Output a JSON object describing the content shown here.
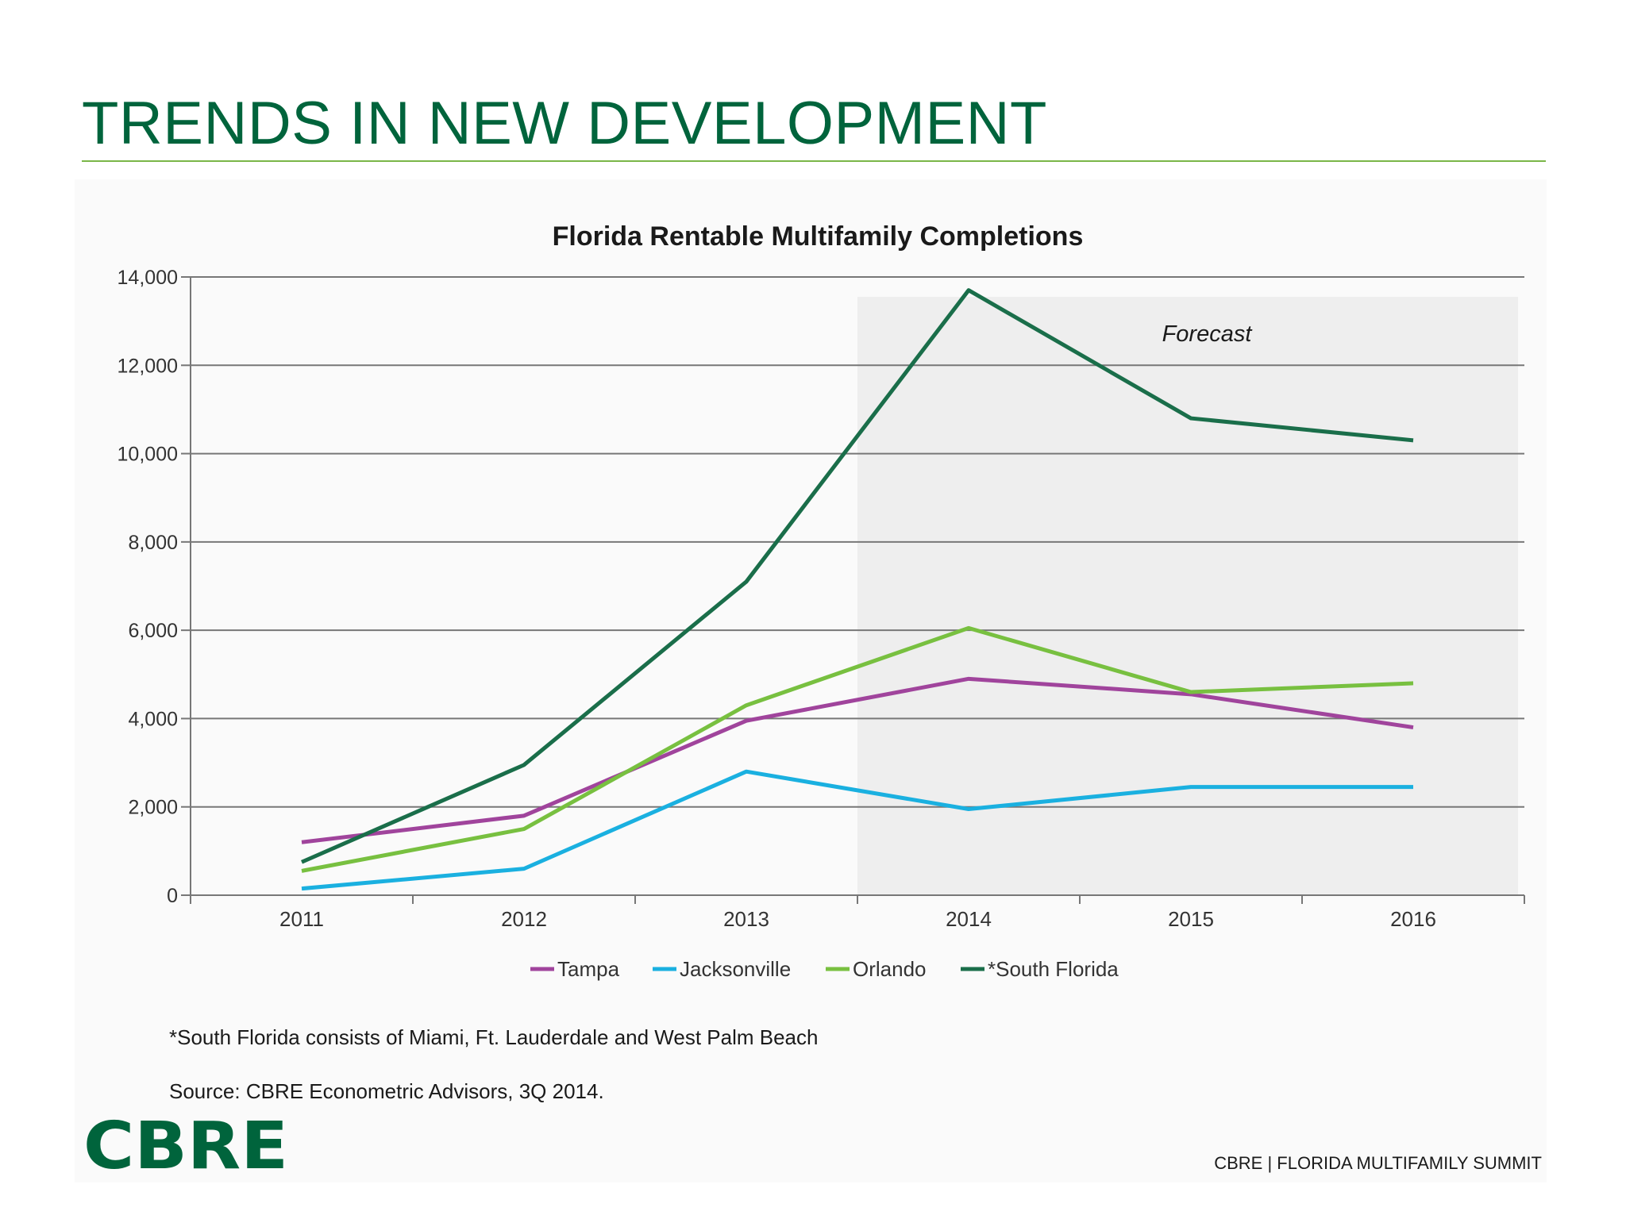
{
  "slide": {
    "title": "TRENDS IN NEW DEVELOPMENT",
    "footnote": "*South Florida consists of Miami, Ft. Lauderdale and West Palm Beach",
    "source": "Source: CBRE Econometric Advisors, 3Q 2014.",
    "logo_text": "CBRE",
    "footer": "CBRE  |  FLORIDA MULTIFAMILY SUMMIT",
    "colors": {
      "title": "#00643c",
      "rule": "#7ab648",
      "logo": "#00643c"
    }
  },
  "chart_data": {
    "type": "line",
    "title": "Florida Rentable Multifamily Completions",
    "xlabel": "",
    "ylabel": "",
    "categories": [
      "2011",
      "2012",
      "2013",
      "2014",
      "2015",
      "2016"
    ],
    "ylim": [
      0,
      14000
    ],
    "yticks": [
      0,
      2000,
      4000,
      6000,
      8000,
      10000,
      12000,
      14000
    ],
    "ytick_labels": [
      "0",
      "2,000",
      "4,000",
      "6,000",
      "8,000",
      "10,000",
      "12,000",
      "14,000"
    ],
    "grid": true,
    "legend_position": "bottom",
    "annotation": "Forecast",
    "forecast_from": "2014",
    "series": [
      {
        "name": "Tampa",
        "color": "#a0449c",
        "values": [
          1200,
          1800,
          3950,
          4900,
          4550,
          3800
        ]
      },
      {
        "name": "Jacksonville",
        "color": "#1ab0e0",
        "values": [
          150,
          600,
          2800,
          1950,
          2450,
          2450
        ]
      },
      {
        "name": "Orlando",
        "color": "#78c040",
        "values": [
          550,
          1500,
          4300,
          6050,
          4600,
          4800
        ]
      },
      {
        "name": "*South Florida",
        "color": "#1a6e4a",
        "values": [
          750,
          2950,
          7100,
          13700,
          10800,
          10300
        ]
      }
    ]
  }
}
